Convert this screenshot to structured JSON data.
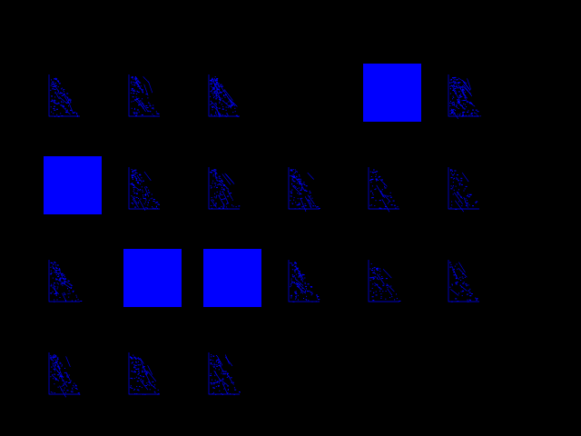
{
  "screen": {
    "background": "#000000"
  },
  "palette": {
    "tile_fill": "#0000ff",
    "stroke": "#0000ff"
  },
  "grid": {
    "rows": [
      {
        "tiles": [
          {
            "kind": "scatter",
            "icon": "scatter-plot-thumbnail-icon"
          },
          {
            "kind": "scatter",
            "icon": "scatter-plot-thumbnail-icon"
          },
          {
            "kind": "scatter-dense",
            "icon": "scatter-plot-thumbnail-icon"
          },
          {
            "kind": "empty",
            "icon": ""
          },
          {
            "kind": "solid",
            "icon": "solid-blue-square-icon"
          },
          {
            "kind": "scatter-dense",
            "icon": "scatter-plot-thumbnail-icon"
          }
        ]
      },
      {
        "tiles": [
          {
            "kind": "solid",
            "icon": "solid-blue-square-icon"
          },
          {
            "kind": "scatter",
            "icon": "scatter-plot-thumbnail-icon"
          },
          {
            "kind": "scatter",
            "icon": "scatter-plot-thumbnail-icon"
          },
          {
            "kind": "scatter",
            "icon": "scatter-plot-thumbnail-icon"
          },
          {
            "kind": "scatter-sparse",
            "icon": "scatter-plot-thumbnail-icon"
          },
          {
            "kind": "scatter-sparse",
            "icon": "scatter-plot-thumbnail-icon"
          }
        ]
      },
      {
        "tiles": [
          {
            "kind": "scatter",
            "icon": "scatter-plot-thumbnail-icon"
          },
          {
            "kind": "solid",
            "icon": "solid-blue-square-icon"
          },
          {
            "kind": "solid",
            "icon": "solid-blue-square-icon"
          },
          {
            "kind": "scatter",
            "icon": "scatter-plot-thumbnail-icon"
          },
          {
            "kind": "scatter-sparse",
            "icon": "scatter-plot-thumbnail-icon"
          },
          {
            "kind": "scatter-sparse",
            "icon": "scatter-plot-thumbnail-icon"
          }
        ]
      },
      {
        "tiles": [
          {
            "kind": "scatter",
            "icon": "scatter-plot-thumbnail-icon"
          },
          {
            "kind": "scatter",
            "icon": "scatter-plot-thumbnail-icon"
          },
          {
            "kind": "scatter",
            "icon": "scatter-plot-thumbnail-icon"
          }
        ]
      }
    ]
  }
}
